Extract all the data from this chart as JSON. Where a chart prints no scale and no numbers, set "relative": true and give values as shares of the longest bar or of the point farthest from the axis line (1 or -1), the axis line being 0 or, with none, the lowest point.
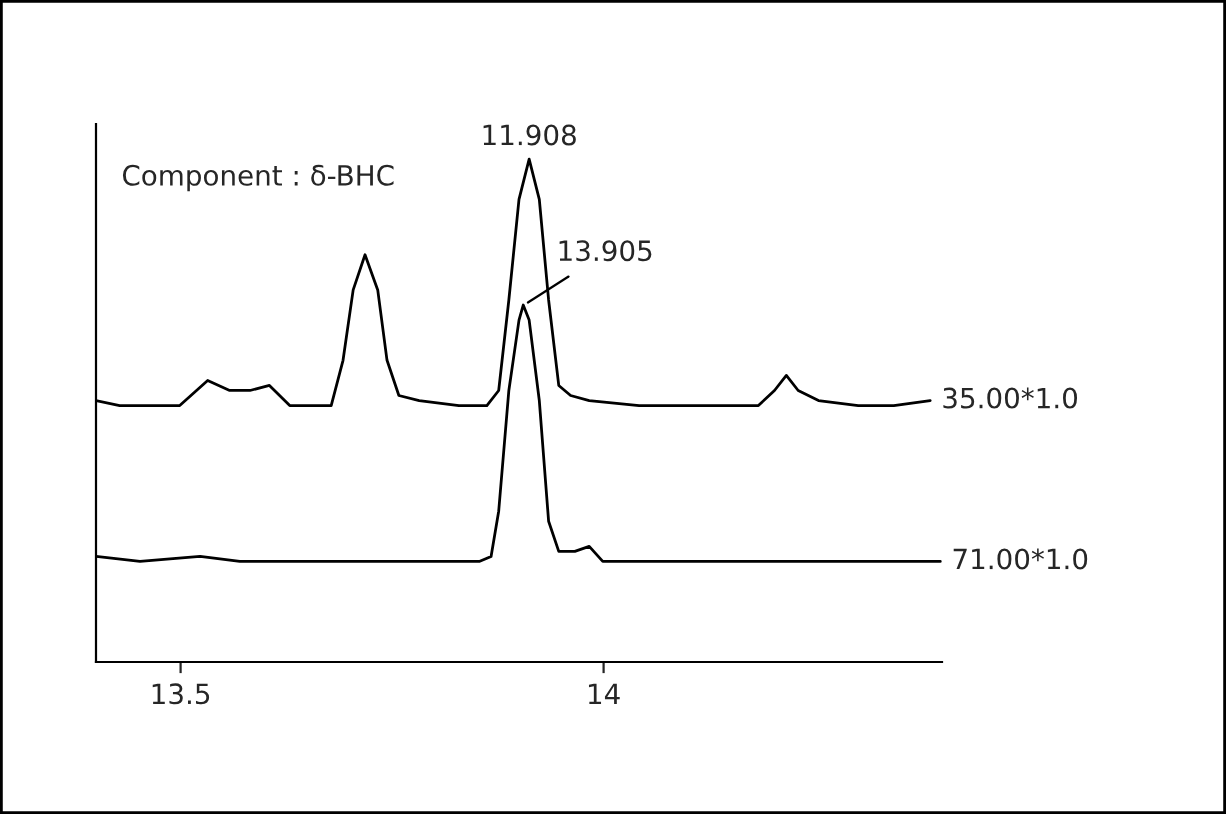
{
  "chart_data": {
    "type": "line",
    "relative": true,
    "xlim": [
      13.4,
      14.4
    ],
    "xticks": [
      13.5,
      14
    ],
    "legend": false,
    "grid": false,
    "marker": "none",
    "line_style": "solid",
    "annotations": [
      "Component : δ-BHC",
      {
        "text": "11.908",
        "x": 13.912,
        "y": 1.0
      },
      {
        "text": "13.905",
        "x": 13.905,
        "y": 0.709
      }
    ],
    "series": [
      {
        "name": "35.00*1.0",
        "color": "#000000",
        "x": [
          13.4,
          13.428,
          13.464,
          13.499,
          13.532,
          13.558,
          13.582,
          13.605,
          13.629,
          13.664,
          13.678,
          13.692,
          13.704,
          13.718,
          13.733,
          13.744,
          13.758,
          13.782,
          13.829,
          13.862,
          13.876,
          13.888,
          13.9,
          13.912,
          13.924,
          13.935,
          13.947,
          13.961,
          13.983,
          14.042,
          14.089,
          14.126,
          14.183,
          14.202,
          14.216,
          14.23,
          14.254,
          14.301,
          14.343,
          14.386
        ],
        "values": [
          0.52,
          0.51,
          0.51,
          0.51,
          0.56,
          0.54,
          0.54,
          0.55,
          0.51,
          0.51,
          0.51,
          0.6,
          0.74,
          0.81,
          0.74,
          0.6,
          0.53,
          0.52,
          0.51,
          0.51,
          0.54,
          0.72,
          0.92,
          1.0,
          0.92,
          0.72,
          0.55,
          0.53,
          0.52,
          0.51,
          0.51,
          0.51,
          0.51,
          0.54,
          0.57,
          0.54,
          0.52,
          0.51,
          0.51,
          0.52
        ]
      },
      {
        "name": "71.00*1.0",
        "color": "#000000",
        "x": [
          13.4,
          13.452,
          13.523,
          13.57,
          13.664,
          13.758,
          13.853,
          13.867,
          13.876,
          13.888,
          13.9,
          13.905,
          13.912,
          13.924,
          13.935,
          13.947,
          13.966,
          13.983,
          13.999,
          14.089,
          14.183,
          14.277,
          14.398
        ],
        "values": [
          0.21,
          0.2,
          0.21,
          0.2,
          0.2,
          0.2,
          0.2,
          0.21,
          0.3,
          0.54,
          0.68,
          0.71,
          0.68,
          0.52,
          0.28,
          0.22,
          0.22,
          0.23,
          0.2,
          0.2,
          0.2,
          0.2,
          0.2
        ]
      }
    ]
  }
}
